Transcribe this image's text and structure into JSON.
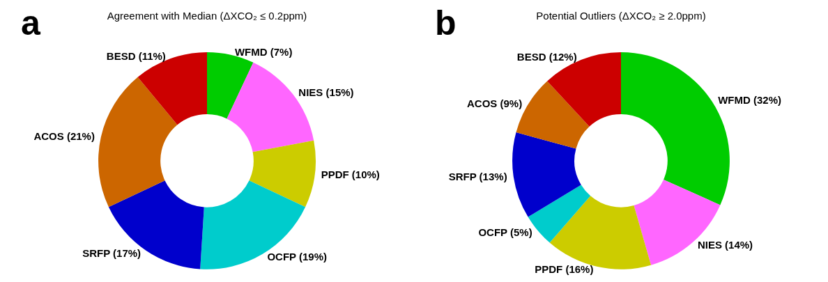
{
  "chart_data": [
    {
      "type": "donut",
      "title": "Agreement with Median (ΔXCO₂ ≤ 0.2ppm)",
      "annotations": [
        "a"
      ],
      "categories": [
        "WFMD",
        "NIES",
        "PPDF",
        "OCFP",
        "SRFP",
        "ACOS",
        "BESD"
      ],
      "values": [
        7,
        15,
        10,
        19,
        17,
        21,
        11
      ],
      "value_labels": [
        "(7%)",
        "(15%)",
        "(10%)",
        "(19%)",
        "(17%)",
        "(21%)",
        "(11%)"
      ],
      "colors": [
        "#00cc00",
        "#ff66ff",
        "#cccc00",
        "#00cccc",
        "#0000cc",
        "#cc6600",
        "#cc0000"
      ],
      "legend": false
    },
    {
      "type": "donut",
      "title": "Potential Outliers (ΔXCO₂ ≥ 2.0ppm)",
      "annotations": [
        "b"
      ],
      "categories": [
        "WFMD",
        "NIES",
        "PPDF",
        "OCFP",
        "SRFP",
        "ACOS",
        "BESD"
      ],
      "values": [
        32,
        14,
        16,
        5,
        13,
        9,
        12
      ],
      "value_labels": [
        "(32%)",
        "(14%)",
        "(16%)",
        "(5%)",
        "(13%)",
        "(9%)",
        "(12%)"
      ],
      "colors": [
        "#00cc00",
        "#ff66ff",
        "#cccc00",
        "#00cccc",
        "#0000cc",
        "#cc6600",
        "#cc0000"
      ],
      "legend": false
    }
  ]
}
